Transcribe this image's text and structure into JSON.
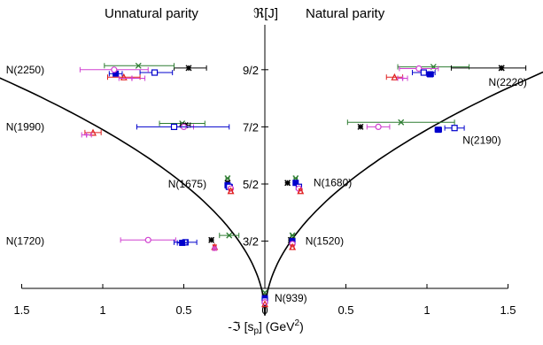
{
  "chart_data": {
    "type": "scatter",
    "title_left": "Unnatural parity",
    "title_right": "Natural parity",
    "ylabel": "ℜ[J]",
    "xlabel_main": "-ℑ [s",
    "xlabel_sub": "p",
    "xlabel_mid": "] (GeV",
    "xlabel_sup": "2",
    "xlabel_end": ")",
    "xlim": [
      -1.5,
      1.5
    ],
    "ylim": [
      -0.5,
      5.2
    ],
    "x_ticks": [
      {
        "value": -1.5,
        "label": "1.5"
      },
      {
        "value": -1.0,
        "label": "1"
      },
      {
        "value": -0.5,
        "label": "0.5"
      },
      {
        "value": 0.0,
        "label": "0"
      },
      {
        "value": 0.5,
        "label": "0.5"
      },
      {
        "value": 1.0,
        "label": "1"
      },
      {
        "value": 1.5,
        "label": "1.5"
      }
    ],
    "y_ticks": [
      {
        "value": 1.5,
        "label": "3/2"
      },
      {
        "value": 2.5,
        "label": "5/2"
      },
      {
        "value": 3.5,
        "label": "7/2"
      },
      {
        "value": 4.5,
        "label": "9/2"
      }
    ],
    "colors": {
      "axis": "#000000",
      "curve": "#000000",
      "black": "#000000",
      "green": "#2e7d32",
      "magenta": "#d040d0",
      "blue": "#0000cc",
      "red": "#e02020"
    },
    "state_labels": [
      {
        "text": "N(2250)",
        "x": -1.36,
        "y": 4.5
      },
      {
        "text": "N(1990)",
        "x": -1.36,
        "y": 3.5
      },
      {
        "text": "N(1675)",
        "x": -0.36,
        "y": 2.5
      },
      {
        "text": "N(1720)",
        "x": -1.36,
        "y": 1.5
      },
      {
        "text": "N(2220)",
        "x": 1.38,
        "y": 4.28
      },
      {
        "text": "N(2190)",
        "x": 1.22,
        "y": 3.27
      },
      {
        "text": "N(1680)",
        "x": 0.3,
        "y": 2.52
      },
      {
        "text": "N(1520)",
        "x": 0.25,
        "y": 1.5
      },
      {
        "text": "N(939)",
        "x": 0.06,
        "y": 0.5
      }
    ],
    "curve": {
      "y0": 0.2,
      "k": 3.25
    },
    "points": [
      {
        "series": "black",
        "marker": "star",
        "x": -0.47,
        "y": 4.53,
        "xerr": [
          0.09,
          0.11
        ]
      },
      {
        "series": "green",
        "marker": "x",
        "x": -0.78,
        "y": 4.57,
        "xerr": [
          0.21,
          0.22
        ]
      },
      {
        "series": "blue",
        "marker": "open-square",
        "x": -0.68,
        "y": 4.45,
        "xerr": [
          0.09,
          0.11
        ]
      },
      {
        "series": "blue",
        "marker": "filled-square",
        "x": -0.92,
        "y": 4.43,
        "xerr": [
          0.04,
          0.04
        ]
      },
      {
        "series": "magenta",
        "marker": "open-circle",
        "x": -0.93,
        "y": 4.5,
        "xerr": [
          0.21,
          0.21
        ]
      },
      {
        "series": "red",
        "marker": "triangle",
        "x": -0.87,
        "y": 4.37,
        "xerr": [
          0.1,
          0.1
        ]
      },
      {
        "series": "magenta",
        "marker": "plus",
        "x": -0.82,
        "y": 4.35,
        "xerr": [
          0.08,
          0.08
        ]
      },
      {
        "series": "black",
        "marker": "star",
        "x": 1.46,
        "y": 4.53,
        "xerr": [
          0.0,
          0.0
        ]
      },
      {
        "series": "green",
        "marker": "x",
        "x": 1.04,
        "y": 4.55,
        "xerr": [
          0.22,
          0.22
        ]
      },
      {
        "series": "black",
        "marker": "star",
        "x": 1.46,
        "y": 4.53,
        "xerr": [
          0.31,
          0.15
        ]
      },
      {
        "series": "magenta",
        "marker": "open-circle",
        "x": 0.95,
        "y": 4.52,
        "xerr": [
          0.12,
          0.12
        ]
      },
      {
        "series": "blue",
        "marker": "open-square",
        "x": 0.98,
        "y": 4.45,
        "xerr": [
          0.07,
          0.07
        ]
      },
      {
        "series": "blue",
        "marker": "filled-square",
        "x": 1.02,
        "y": 4.42,
        "xerr": [
          0.02,
          0.02
        ]
      },
      {
        "series": "red",
        "marker": "triangle",
        "x": 0.8,
        "y": 4.37,
        "xerr": [
          0.05,
          0.05
        ]
      },
      {
        "series": "magenta",
        "marker": "plus",
        "x": 0.85,
        "y": 4.35,
        "xerr": [
          0.03,
          0.03
        ]
      },
      {
        "series": "green",
        "marker": "x",
        "x": -0.51,
        "y": 3.56,
        "xerr": [
          0.14,
          0.14
        ]
      },
      {
        "series": "black",
        "marker": "star",
        "x": -0.49,
        "y": 3.53,
        "xerr": [
          0.03,
          0.03
        ]
      },
      {
        "series": "magenta",
        "marker": "open-circle",
        "x": -0.5,
        "y": 3.5,
        "xerr": [
          0.06,
          0.06
        ]
      },
      {
        "series": "blue",
        "marker": "open-square",
        "x": -0.56,
        "y": 3.5,
        "xerr": [
          0.23,
          0.34
        ]
      },
      {
        "series": "red",
        "marker": "triangle",
        "x": -1.06,
        "y": 3.4,
        "xerr": [
          0.05,
          0.05
        ]
      },
      {
        "series": "magenta",
        "marker": "plus",
        "x": -1.1,
        "y": 3.36,
        "xerr": [
          0.03,
          0.03
        ]
      },
      {
        "series": "black",
        "marker": "star",
        "x": 0.59,
        "y": 3.5,
        "xerr": [
          0.0,
          0.0
        ]
      },
      {
        "series": "green",
        "marker": "x",
        "x": 0.84,
        "y": 3.58,
        "xerr": [
          0.33,
          0.33
        ]
      },
      {
        "series": "magenta",
        "marker": "open-circle",
        "x": 0.7,
        "y": 3.5,
        "xerr": [
          0.07,
          0.07
        ]
      },
      {
        "series": "blue",
        "marker": "open-square",
        "x": 1.17,
        "y": 3.48,
        "xerr": [
          0.06,
          0.06
        ]
      },
      {
        "series": "blue",
        "marker": "filled-square",
        "x": 1.07,
        "y": 3.45,
        "xerr": [
          0.02,
          0.02
        ]
      },
      {
        "series": "green",
        "marker": "x",
        "x": -0.23,
        "y": 2.6,
        "xerr": [
          0.01,
          0.01
        ]
      },
      {
        "series": "black",
        "marker": "star",
        "x": -0.23,
        "y": 2.52,
        "xerr": [
          0.01,
          0.01
        ]
      },
      {
        "series": "blue",
        "marker": "filled-square",
        "x": -0.23,
        "y": 2.48,
        "xerr": [
          0.01,
          0.01
        ]
      },
      {
        "series": "blue",
        "marker": "open-square",
        "x": -0.22,
        "y": 2.45,
        "xerr": [
          0.02,
          0.02
        ]
      },
      {
        "series": "magenta",
        "marker": "open-circle",
        "x": -0.21,
        "y": 2.42,
        "xerr": [
          0.01,
          0.01
        ]
      },
      {
        "series": "red",
        "marker": "triangle",
        "x": -0.21,
        "y": 2.38,
        "xerr": [
          0.01,
          0.01
        ]
      },
      {
        "series": "black",
        "marker": "star",
        "x": 0.14,
        "y": 2.52,
        "xerr": [
          0.01,
          0.01
        ]
      },
      {
        "series": "green",
        "marker": "x",
        "x": 0.19,
        "y": 2.6,
        "xerr": [
          0.01,
          0.01
        ]
      },
      {
        "series": "blue",
        "marker": "filled-square",
        "x": 0.19,
        "y": 2.52,
        "xerr": [
          0.01,
          0.01
        ]
      },
      {
        "series": "blue",
        "marker": "open-square",
        "x": 0.21,
        "y": 2.45,
        "xerr": [
          0.01,
          0.01
        ]
      },
      {
        "series": "magenta",
        "marker": "open-circle",
        "x": 0.21,
        "y": 2.42,
        "xerr": [
          0.01,
          0.01
        ]
      },
      {
        "series": "red",
        "marker": "triangle",
        "x": 0.22,
        "y": 2.38,
        "xerr": [
          0.01,
          0.01
        ]
      },
      {
        "series": "green",
        "marker": "x",
        "x": -0.22,
        "y": 1.6,
        "xerr": [
          0.06,
          0.06
        ]
      },
      {
        "series": "black",
        "marker": "star",
        "x": -0.33,
        "y": 1.52,
        "xerr": [
          0.01,
          0.01
        ]
      },
      {
        "series": "magenta",
        "marker": "open-circle",
        "x": -0.72,
        "y": 1.52,
        "xerr": [
          0.17,
          0.17
        ]
      },
      {
        "series": "blue",
        "marker": "open-square",
        "x": -0.49,
        "y": 1.48,
        "xerr": [
          0.07,
          0.07
        ]
      },
      {
        "series": "blue",
        "marker": "filled-square",
        "x": -0.51,
        "y": 1.47,
        "xerr": [
          0.03,
          0.03
        ]
      },
      {
        "series": "red",
        "marker": "triangle",
        "x": -0.31,
        "y": 1.4,
        "xerr": [
          0.01,
          0.01
        ]
      },
      {
        "series": "magenta",
        "marker": "plus",
        "x": -0.31,
        "y": 1.37,
        "xerr": [
          0.01,
          0.01
        ]
      },
      {
        "series": "green",
        "marker": "x",
        "x": 0.17,
        "y": 1.6,
        "xerr": [
          0.01,
          0.01
        ]
      },
      {
        "series": "black",
        "marker": "star",
        "x": 0.16,
        "y": 1.52,
        "xerr": [
          0.01,
          0.01
        ]
      },
      {
        "series": "blue",
        "marker": "filled-square",
        "x": 0.17,
        "y": 1.5,
        "xerr": [
          0.01,
          0.01
        ]
      },
      {
        "series": "magenta",
        "marker": "open-circle",
        "x": 0.17,
        "y": 1.45,
        "xerr": [
          0.01,
          0.01
        ]
      },
      {
        "series": "red",
        "marker": "triangle",
        "x": 0.17,
        "y": 1.4,
        "xerr": [
          0.01,
          0.01
        ]
      },
      {
        "series": "green",
        "marker": "x",
        "x": 0.0,
        "y": 0.6,
        "xerr": [
          0.0,
          0.0
        ]
      },
      {
        "series": "black",
        "marker": "star",
        "x": 0.0,
        "y": 0.53,
        "xerr": [
          0.0,
          0.0
        ]
      },
      {
        "series": "blue",
        "marker": "filled-square",
        "x": 0.0,
        "y": 0.5,
        "xerr": [
          0.0,
          0.0
        ]
      },
      {
        "series": "blue",
        "marker": "open-square",
        "x": 0.0,
        "y": 0.46,
        "xerr": [
          0.0,
          0.0
        ]
      },
      {
        "series": "magenta",
        "marker": "open-circle",
        "x": 0.0,
        "y": 0.43,
        "xerr": [
          0.0,
          0.0
        ]
      },
      {
        "series": "red",
        "marker": "triangle",
        "x": 0.0,
        "y": 0.4,
        "xerr": [
          0.0,
          0.0
        ]
      }
    ]
  }
}
